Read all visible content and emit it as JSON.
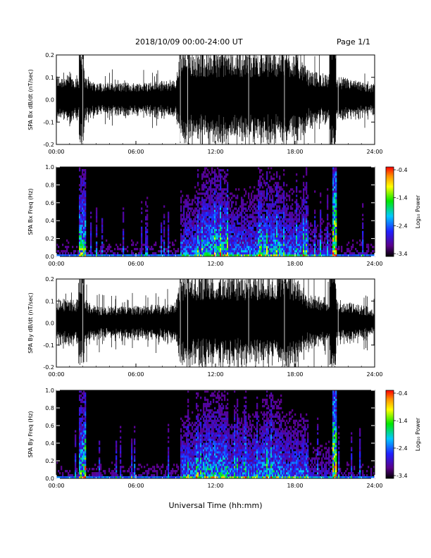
{
  "header": {
    "date_range": "2018/10/09   00:00-24:00 UT",
    "page": "Page 1/1"
  },
  "x_axis": {
    "label": "Universal Time (hh:mm)",
    "ticks": [
      "00:00",
      "06:00",
      "12:00",
      "18:00",
      "24:00"
    ]
  },
  "colors": {
    "trace": "#000000",
    "spectrogram_bg": "#000000"
  },
  "chart_data": [
    {
      "type": "line",
      "ylabel": "SPA Bx dB/dt (nT/sec)",
      "ylim": [
        -0.2,
        0.2
      ],
      "yticks": [
        "0.2",
        "0.1",
        "0.0",
        "-0.1",
        "-0.2"
      ],
      "xlim": [
        "00:00",
        "24:00"
      ],
      "x": [
        "00:00",
        "02:00",
        "03:00",
        "06:00",
        "09:00",
        "09:20",
        "12:00",
        "15:00",
        "18:00",
        "19:00",
        "21:00",
        "24:00"
      ],
      "envelope": [
        0.1,
        0.1,
        0.07,
        0.07,
        0.08,
        0.2,
        0.2,
        0.2,
        0.2,
        0.12,
        0.1,
        0.06
      ]
    },
    {
      "type": "heatmap",
      "ylabel": "SPA Bx Freq (Hz)",
      "ylim": [
        0.0,
        1.0
      ],
      "yticks": [
        "1.0",
        "0.8",
        "0.6",
        "0.4",
        "0.2",
        "0.0"
      ],
      "colorbar": {
        "label": "Log₁₀ Power",
        "ticks": [
          "-0.4",
          "-1.4",
          "-2.4",
          "-3.4"
        ],
        "range": [
          -3.4,
          -0.4
        ]
      }
    },
    {
      "type": "line",
      "ylabel": "SPA By dB/dt (nT/sec)",
      "ylim": [
        -0.2,
        0.2
      ],
      "yticks": [
        "0.2",
        "0.1",
        "0.0",
        "-0.1",
        "-0.2"
      ],
      "xlim": [
        "00:00",
        "24:00"
      ],
      "x": [
        "00:00",
        "02:00",
        "03:00",
        "06:00",
        "09:00",
        "09:20",
        "12:00",
        "15:00",
        "18:00",
        "19:00",
        "21:00",
        "24:00"
      ],
      "envelope": [
        0.1,
        0.1,
        0.07,
        0.07,
        0.08,
        0.2,
        0.2,
        0.2,
        0.2,
        0.12,
        0.1,
        0.06
      ]
    },
    {
      "type": "heatmap",
      "ylabel": "SPA By Freq (Hz)",
      "ylim": [
        0.0,
        1.0
      ],
      "yticks": [
        "1.0",
        "0.8",
        "0.6",
        "0.4",
        "0.2",
        "0.0"
      ],
      "colorbar": {
        "label": "Log₁₀ Power",
        "ticks": [
          "-0.4",
          "-1.4",
          "-2.4",
          "-3.4"
        ],
        "range": [
          -3.4,
          -0.4
        ]
      }
    }
  ]
}
